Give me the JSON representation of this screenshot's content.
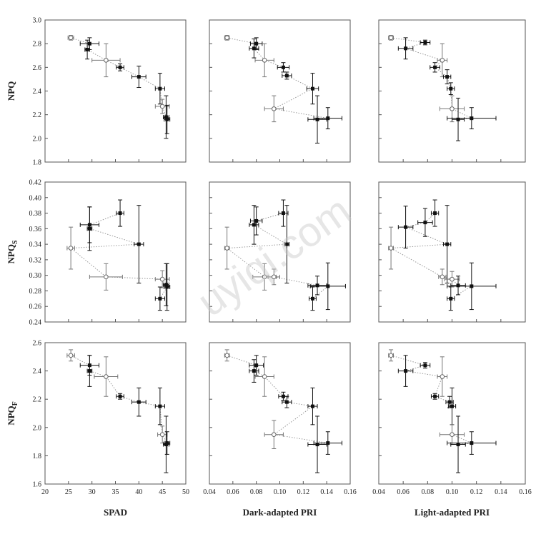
{
  "watermark": "uyiqi.com",
  "chart_data": {
    "type": "scatter",
    "rows": [
      {
        "ylabel": "NPQ",
        "ylabel_sub": "",
        "ylim": [
          1.8,
          3.0
        ],
        "yticks": [
          "1.8",
          "2.0",
          "2.2",
          "2.4",
          "2.6",
          "2.8",
          "3.0"
        ]
      },
      {
        "ylabel": "NPQ",
        "ylabel_sub": "S",
        "ylim": [
          0.24,
          0.42
        ],
        "yticks": [
          "0.24",
          "0.26",
          "0.28",
          "0.30",
          "0.32",
          "0.34",
          "0.36",
          "0.38",
          "0.40",
          "0.42"
        ]
      },
      {
        "ylabel": "NPQ",
        "ylabel_sub": "F",
        "ylim": [
          1.6,
          2.6
        ],
        "yticks": [
          "1.6",
          "1.8",
          "2.0",
          "2.2",
          "2.4",
          "2.6"
        ]
      }
    ],
    "columns": [
      {
        "xlabel": "SPAD",
        "xlim": [
          20,
          50
        ],
        "xticks": [
          "20",
          "25",
          "30",
          "35",
          "40",
          "45",
          "50"
        ]
      },
      {
        "xlabel": "Dark-adapted PRI",
        "xlim": [
          0.04,
          0.16
        ],
        "xticks": [
          "0.04",
          "0.06",
          "0.08",
          "0.10",
          "0.12",
          "0.14",
          "0.16"
        ]
      },
      {
        "xlabel": "Light-adapted PRI",
        "xlim": [
          0.04,
          0.16
        ],
        "xticks": [
          "0.04",
          "0.06",
          "0.08",
          "0.10",
          "0.12",
          "0.14",
          "0.16"
        ]
      }
    ],
    "panels": [
      {
        "row": 0,
        "col": 0,
        "points": [
          {
            "x": 25.5,
            "y": 2.85,
            "xerr": 0.6,
            "yerr": 0.02,
            "filled": false
          },
          {
            "x": 29.5,
            "y": 2.8,
            "xerr": 2.0,
            "yerr": 0.05,
            "filled": true
          },
          {
            "x": 29.0,
            "y": 2.75,
            "xerr": 0.5,
            "yerr": 0.08,
            "filled": true
          },
          {
            "x": 33.0,
            "y": 2.66,
            "xerr": 3.0,
            "yerr": 0.14,
            "filled": false
          },
          {
            "x": 36.0,
            "y": 2.6,
            "xerr": 0.8,
            "yerr": 0.03,
            "filled": true
          },
          {
            "x": 40.0,
            "y": 2.52,
            "xerr": 1.5,
            "yerr": 0.09,
            "filled": true
          },
          {
            "x": 44.5,
            "y": 2.42,
            "xerr": 1.0,
            "yerr": 0.13,
            "filled": true
          },
          {
            "x": 45.0,
            "y": 2.27,
            "xerr": 1.5,
            "yerr": 0.06,
            "filled": false
          },
          {
            "x": 45.8,
            "y": 2.18,
            "xerr": 0.6,
            "yerr": 0.18,
            "filled": true
          },
          {
            "x": 46.0,
            "y": 2.16,
            "xerr": 0.6,
            "yerr": 0.12,
            "filled": true
          }
        ]
      },
      {
        "row": 0,
        "col": 1,
        "points": [
          {
            "x": 0.055,
            "y": 2.85,
            "xerr": 0.002,
            "yerr": 0.02,
            "filled": false
          },
          {
            "x": 0.08,
            "y": 2.8,
            "xerr": 0.005,
            "yerr": 0.05,
            "filled": true
          },
          {
            "x": 0.078,
            "y": 2.76,
            "xerr": 0.004,
            "yerr": 0.08,
            "filled": true
          },
          {
            "x": 0.087,
            "y": 2.66,
            "xerr": 0.008,
            "yerr": 0.14,
            "filled": false
          },
          {
            "x": 0.095,
            "y": 2.25,
            "xerr": 0.008,
            "yerr": 0.11,
            "filled": false
          },
          {
            "x": 0.103,
            "y": 2.6,
            "xerr": 0.005,
            "yerr": 0.04,
            "filled": true
          },
          {
            "x": 0.106,
            "y": 2.53,
            "xerr": 0.004,
            "yerr": 0.03,
            "filled": true
          },
          {
            "x": 0.128,
            "y": 2.42,
            "xerr": 0.005,
            "yerr": 0.13,
            "filled": true
          },
          {
            "x": 0.132,
            "y": 2.16,
            "xerr": 0.008,
            "yerr": 0.2,
            "filled": true
          },
          {
            "x": 0.141,
            "y": 2.17,
            "xerr": 0.012,
            "yerr": 0.09,
            "filled": true
          }
        ]
      },
      {
        "row": 0,
        "col": 2,
        "points": [
          {
            "x": 0.05,
            "y": 2.85,
            "xerr": 0.002,
            "yerr": 0.02,
            "filled": false
          },
          {
            "x": 0.062,
            "y": 2.76,
            "xerr": 0.006,
            "yerr": 0.09,
            "filled": true
          },
          {
            "x": 0.078,
            "y": 2.81,
            "xerr": 0.004,
            "yerr": 0.02,
            "filled": true
          },
          {
            "x": 0.086,
            "y": 2.6,
            "xerr": 0.004,
            "yerr": 0.04,
            "filled": true
          },
          {
            "x": 0.092,
            "y": 2.66,
            "xerr": 0.004,
            "yerr": 0.14,
            "filled": false
          },
          {
            "x": 0.096,
            "y": 2.52,
            "xerr": 0.003,
            "yerr": 0.06,
            "filled": true
          },
          {
            "x": 0.099,
            "y": 2.42,
            "xerr": 0.003,
            "yerr": 0.05,
            "filled": true
          },
          {
            "x": 0.1,
            "y": 2.25,
            "xerr": 0.01,
            "yerr": 0.11,
            "filled": false
          },
          {
            "x": 0.105,
            "y": 2.16,
            "xerr": 0.005,
            "yerr": 0.18,
            "filled": true
          },
          {
            "x": 0.116,
            "y": 2.17,
            "xerr": 0.02,
            "yerr": 0.09,
            "filled": true
          }
        ]
      },
      {
        "row": 1,
        "col": 0,
        "points": [
          {
            "x": 25.5,
            "y": 0.335,
            "xerr": 0.8,
            "yerr": 0.027,
            "filled": false
          },
          {
            "x": 29.5,
            "y": 0.365,
            "xerr": 2.0,
            "yerr": 0.023,
            "filled": true
          },
          {
            "x": 29.5,
            "y": 0.36,
            "xerr": 0.5,
            "yerr": 0.028,
            "filled": true
          },
          {
            "x": 33.0,
            "y": 0.298,
            "xerr": 3.5,
            "yerr": 0.017,
            "filled": false
          },
          {
            "x": 36.0,
            "y": 0.38,
            "xerr": 0.8,
            "yerr": 0.017,
            "filled": true
          },
          {
            "x": 40.0,
            "y": 0.34,
            "xerr": 1.0,
            "yerr": 0.05,
            "filled": true
          },
          {
            "x": 44.5,
            "y": 0.27,
            "xerr": 1.0,
            "yerr": 0.015,
            "filled": true
          },
          {
            "x": 45.0,
            "y": 0.295,
            "xerr": 1.5,
            "yerr": 0.011,
            "filled": false
          },
          {
            "x": 45.8,
            "y": 0.288,
            "xerr": 0.6,
            "yerr": 0.027,
            "filled": true
          },
          {
            "x": 46.0,
            "y": 0.285,
            "xerr": 0.6,
            "yerr": 0.03,
            "filled": true
          }
        ]
      },
      {
        "row": 1,
        "col": 1,
        "points": [
          {
            "x": 0.055,
            "y": 0.335,
            "xerr": 0.002,
            "yerr": 0.027,
            "filled": false
          },
          {
            "x": 0.078,
            "y": 0.365,
            "xerr": 0.004,
            "yerr": 0.025,
            "filled": true
          },
          {
            "x": 0.08,
            "y": 0.37,
            "xerr": 0.005,
            "yerr": 0.018,
            "filled": true
          },
          {
            "x": 0.087,
            "y": 0.298,
            "xerr": 0.01,
            "yerr": 0.017,
            "filled": false
          },
          {
            "x": 0.095,
            "y": 0.298,
            "xerr": 0.005,
            "yerr": 0.01,
            "filled": false
          },
          {
            "x": 0.103,
            "y": 0.38,
            "xerr": 0.004,
            "yerr": 0.017,
            "filled": true
          },
          {
            "x": 0.106,
            "y": 0.34,
            "xerr": 0.002,
            "yerr": 0.05,
            "filled": true
          },
          {
            "x": 0.128,
            "y": 0.27,
            "xerr": 0.003,
            "yerr": 0.015,
            "filled": true
          },
          {
            "x": 0.132,
            "y": 0.287,
            "xerr": 0.008,
            "yerr": 0.012,
            "filled": true
          },
          {
            "x": 0.141,
            "y": 0.286,
            "xerr": 0.015,
            "yerr": 0.03,
            "filled": true
          }
        ]
      },
      {
        "row": 1,
        "col": 2,
        "points": [
          {
            "x": 0.05,
            "y": 0.335,
            "xerr": 0.002,
            "yerr": 0.027,
            "filled": false
          },
          {
            "x": 0.062,
            "y": 0.362,
            "xerr": 0.006,
            "yerr": 0.027,
            "filled": true
          },
          {
            "x": 0.078,
            "y": 0.368,
            "xerr": 0.006,
            "yerr": 0.018,
            "filled": true
          },
          {
            "x": 0.086,
            "y": 0.38,
            "xerr": 0.003,
            "yerr": 0.017,
            "filled": true
          },
          {
            "x": 0.092,
            "y": 0.298,
            "xerr": 0.003,
            "yerr": 0.01,
            "filled": false
          },
          {
            "x": 0.096,
            "y": 0.34,
            "xerr": 0.003,
            "yerr": 0.05,
            "filled": true
          },
          {
            "x": 0.099,
            "y": 0.27,
            "xerr": 0.003,
            "yerr": 0.015,
            "filled": true
          },
          {
            "x": 0.1,
            "y": 0.295,
            "xerr": 0.006,
            "yerr": 0.01,
            "filled": false
          },
          {
            "x": 0.105,
            "y": 0.287,
            "xerr": 0.006,
            "yerr": 0.012,
            "filled": true
          },
          {
            "x": 0.116,
            "y": 0.286,
            "xerr": 0.02,
            "yerr": 0.03,
            "filled": true
          }
        ]
      },
      {
        "row": 2,
        "col": 0,
        "points": [
          {
            "x": 25.5,
            "y": 2.51,
            "xerr": 0.8,
            "yerr": 0.04,
            "filled": false
          },
          {
            "x": 29.5,
            "y": 2.44,
            "xerr": 2.0,
            "yerr": 0.07,
            "filled": true
          },
          {
            "x": 29.5,
            "y": 2.4,
            "xerr": 0.5,
            "yerr": 0.11,
            "filled": true
          },
          {
            "x": 33.0,
            "y": 2.36,
            "xerr": 2.5,
            "yerr": 0.14,
            "filled": false
          },
          {
            "x": 36.0,
            "y": 2.22,
            "xerr": 0.8,
            "yerr": 0.02,
            "filled": true
          },
          {
            "x": 40.0,
            "y": 2.18,
            "xerr": 1.5,
            "yerr": 0.1,
            "filled": true
          },
          {
            "x": 44.5,
            "y": 2.15,
            "xerr": 1.0,
            "yerr": 0.13,
            "filled": true
          },
          {
            "x": 45.0,
            "y": 1.95,
            "xerr": 1.0,
            "yerr": 0.06,
            "filled": false
          },
          {
            "x": 45.8,
            "y": 1.88,
            "xerr": 0.6,
            "yerr": 0.2,
            "filled": true
          },
          {
            "x": 46.0,
            "y": 1.89,
            "xerr": 0.6,
            "yerr": 0.08,
            "filled": true
          }
        ]
      },
      {
        "row": 2,
        "col": 1,
        "points": [
          {
            "x": 0.055,
            "y": 2.51,
            "xerr": 0.002,
            "yerr": 0.04,
            "filled": false
          },
          {
            "x": 0.078,
            "y": 2.4,
            "xerr": 0.004,
            "yerr": 0.08,
            "filled": true
          },
          {
            "x": 0.08,
            "y": 2.44,
            "xerr": 0.006,
            "yerr": 0.07,
            "filled": true
          },
          {
            "x": 0.087,
            "y": 2.36,
            "xerr": 0.008,
            "yerr": 0.14,
            "filled": false
          },
          {
            "x": 0.095,
            "y": 1.95,
            "xerr": 0.008,
            "yerr": 0.1,
            "filled": false
          },
          {
            "x": 0.103,
            "y": 2.22,
            "xerr": 0.004,
            "yerr": 0.03,
            "filled": true
          },
          {
            "x": 0.106,
            "y": 2.18,
            "xerr": 0.004,
            "yerr": 0.04,
            "filled": true
          },
          {
            "x": 0.128,
            "y": 2.15,
            "xerr": 0.004,
            "yerr": 0.13,
            "filled": true
          },
          {
            "x": 0.132,
            "y": 1.88,
            "xerr": 0.008,
            "yerr": 0.2,
            "filled": true
          },
          {
            "x": 0.141,
            "y": 1.89,
            "xerr": 0.012,
            "yerr": 0.08,
            "filled": true
          }
        ]
      },
      {
        "row": 2,
        "col": 2,
        "points": [
          {
            "x": 0.05,
            "y": 2.51,
            "xerr": 0.002,
            "yerr": 0.04,
            "filled": false
          },
          {
            "x": 0.062,
            "y": 2.4,
            "xerr": 0.006,
            "yerr": 0.11,
            "filled": true
          },
          {
            "x": 0.078,
            "y": 2.44,
            "xerr": 0.004,
            "yerr": 0.02,
            "filled": true
          },
          {
            "x": 0.086,
            "y": 2.22,
            "xerr": 0.003,
            "yerr": 0.02,
            "filled": true
          },
          {
            "x": 0.092,
            "y": 2.36,
            "xerr": 0.004,
            "yerr": 0.14,
            "filled": false
          },
          {
            "x": 0.098,
            "y": 2.18,
            "xerr": 0.003,
            "yerr": 0.04,
            "filled": true
          },
          {
            "x": 0.1,
            "y": 2.15,
            "xerr": 0.003,
            "yerr": 0.13,
            "filled": true
          },
          {
            "x": 0.1,
            "y": 1.95,
            "xerr": 0.01,
            "yerr": 0.07,
            "filled": false
          },
          {
            "x": 0.105,
            "y": 1.88,
            "xerr": 0.006,
            "yerr": 0.2,
            "filled": true
          },
          {
            "x": 0.116,
            "y": 1.89,
            "xerr": 0.02,
            "yerr": 0.08,
            "filled": true
          }
        ]
      }
    ]
  }
}
